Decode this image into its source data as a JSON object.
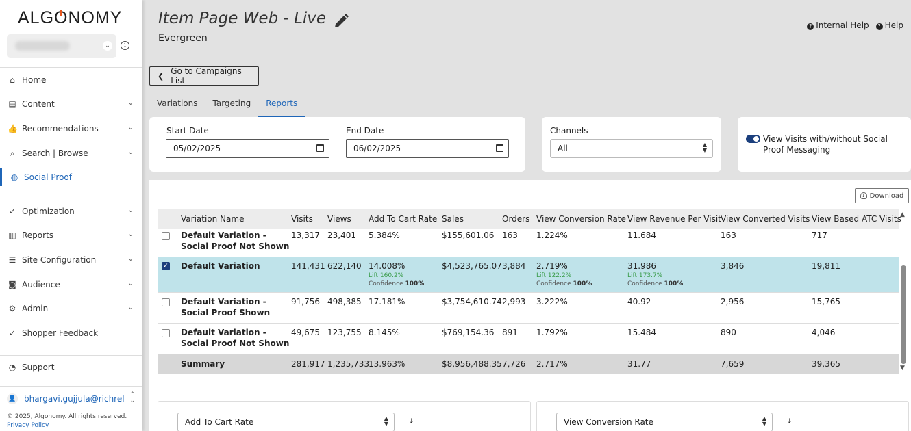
{
  "brand": {
    "logo_pre": "ALG",
    "logo_o": "O",
    "logo_post": "NOMY"
  },
  "sidebar": {
    "items": [
      {
        "label": "Home",
        "icon": "home-icon",
        "glyph": "⌂",
        "chevron": false
      },
      {
        "label": "Content",
        "icon": "clipboard-icon",
        "glyph": "▤",
        "chevron": true
      },
      {
        "label": "Recommendations",
        "icon": "thumbs-up-icon",
        "glyph": "👍",
        "chevron": true
      },
      {
        "label": "Search | Browse",
        "icon": "search-icon",
        "glyph": "⌕",
        "chevron": true
      },
      {
        "label": "Social Proof",
        "icon": "social-proof-icon",
        "glyph": "◍",
        "chevron": false,
        "active": true
      },
      {
        "label": "Optimization",
        "icon": "optimization-icon",
        "glyph": "✓",
        "chevron": true
      },
      {
        "label": "Reports",
        "icon": "reports-icon",
        "glyph": "▥",
        "chevron": true
      },
      {
        "label": "Site Configuration",
        "icon": "site-config-icon",
        "glyph": "☰",
        "chevron": true
      },
      {
        "label": "Audience",
        "icon": "audience-icon",
        "glyph": "◙",
        "chevron": true
      },
      {
        "label": "Admin",
        "icon": "admin-icon",
        "glyph": "⚙",
        "chevron": true
      },
      {
        "label": "Shopper Feedback",
        "icon": "feedback-icon",
        "glyph": "✓",
        "chevron": false
      }
    ],
    "support": "Support",
    "user_email": "bhargavi.gujjula@richrel...",
    "copyright": "© 2025, Algonomy. All rights reserved.",
    "privacy": "Privacy Policy"
  },
  "header": {
    "title": "Item Page Web - Live",
    "subtitle": "Evergreen",
    "internal_help": "Internal Help",
    "help": "Help",
    "back": "Go to Campaigns List"
  },
  "tabs": [
    {
      "label": "Variations",
      "active": false
    },
    {
      "label": "Targeting",
      "active": false
    },
    {
      "label": "Reports",
      "active": true
    }
  ],
  "filters": {
    "start_label": "Start Date",
    "start_value": "05/02/2025",
    "end_label": "End Date",
    "end_value": "06/02/2025",
    "channels_label": "Channels",
    "channels_value": "All",
    "toggle_label": "View Visits with/without Social Proof Messaging",
    "toggle_on": true
  },
  "download": "Download",
  "table": {
    "columns": [
      "Variation Name",
      "Visits",
      "Views",
      "Add To Cart Rate",
      "Sales",
      "Orders",
      "View Conversion Rate",
      "View Revenue Per Visit",
      "View Converted Visits",
      "View Based ATC Visits"
    ],
    "rows": [
      {
        "checked": false,
        "name": "Default Variation - Social Proof Not Shown",
        "visits": "13,317",
        "views": "23,401",
        "atc": "5.384%",
        "sales": "$155,601.06",
        "orders": "163",
        "vcr": "1.224%",
        "vrpv": "11.684",
        "vcv": "163",
        "vatc": "717"
      },
      {
        "checked": true,
        "name": "Default Variation",
        "visits": "141,431",
        "views": "622,140",
        "atc": "14.008%",
        "atc_lift": "Lift 160.2%",
        "atc_conf_label": "Confidence",
        "atc_conf": "100%",
        "sales": "$4,523,765.07",
        "orders": "3,884",
        "vcr": "2.719%",
        "vcr_lift": "Lift 122.2%",
        "vcr_conf_label": "Confidence",
        "vcr_conf": "100%",
        "vrpv": "31.986",
        "vrpv_lift": "Lift 173.7%",
        "vrpv_conf_label": "Confidence",
        "vrpv_conf": "100%",
        "vcv": "3,846",
        "vatc": "19,811"
      },
      {
        "checked": false,
        "name": "Default Variation - Social Proof Shown",
        "visits": "91,756",
        "views": "498,385",
        "atc": "17.181%",
        "sales": "$3,754,610.74",
        "orders": "2,993",
        "vcr": "3.222%",
        "vrpv": "40.92",
        "vcv": "2,956",
        "vatc": "15,765"
      },
      {
        "checked": false,
        "name": "Default Variation - Social Proof Not Shown",
        "visits": "49,675",
        "views": "123,755",
        "atc": "8.145%",
        "sales": "$769,154.36",
        "orders": "891",
        "vcr": "1.792%",
        "vrpv": "15.484",
        "vcv": "890",
        "vatc": "4,046"
      }
    ],
    "summary": {
      "name": "Summary",
      "visits": "281,917",
      "views": "1,235,733",
      "atc": "13.963%",
      "sales": "$8,956,488.35",
      "orders": "7,726",
      "vcr": "2.717%",
      "vrpv": "31.77",
      "vcv": "7,659",
      "vatc": "39,365"
    }
  },
  "charts": {
    "left_metric": "Add To Cart Rate",
    "right_metric": "View Conversion Rate"
  },
  "colors": {
    "accent": "#1f66b8",
    "toggle": "#1b3f7d",
    "selected_row": "#bfe3ea",
    "lift": "#3a9c4a"
  }
}
